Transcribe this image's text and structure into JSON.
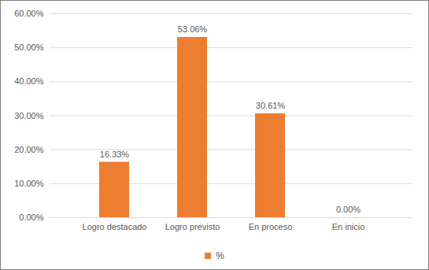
{
  "chart_data": {
    "type": "bar",
    "categories": [
      "Logro destacado",
      "Logro previsto",
      "En proceso",
      "En inicio"
    ],
    "series": [
      {
        "name": "%",
        "color": "#ED7D31",
        "values": [
          16.33,
          53.06,
          30.61,
          0
        ]
      }
    ],
    "value_labels": [
      "16.33%",
      "53.06%",
      "30.61%",
      "0.00%"
    ],
    "ylim": [
      0,
      60
    ],
    "yticks": [
      {
        "value": 0,
        "label": "0.00%"
      },
      {
        "value": 10,
        "label": "10.00%"
      },
      {
        "value": 20,
        "label": "20.00%"
      },
      {
        "value": 30,
        "label": "30.00%"
      },
      {
        "value": 40,
        "label": "40.00%"
      },
      {
        "value": 50,
        "label": "50.00%"
      },
      {
        "value": 60,
        "label": "60.00%"
      }
    ],
    "grid": true,
    "data_labels": true,
    "legend": "bottom"
  }
}
